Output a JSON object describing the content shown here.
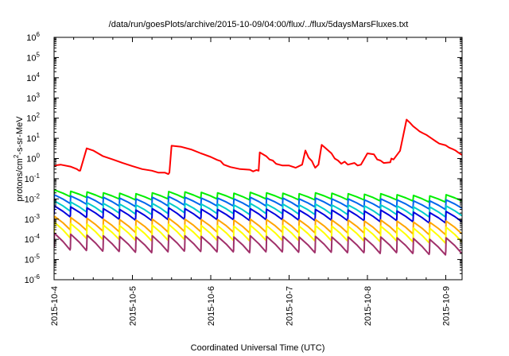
{
  "chart_data": {
    "type": "line",
    "title": "/data/run/goesPlots/archive/2015-10-09/04:00/flux/../flux/5daysMarsFluxes.txt",
    "xlabel": "Coordinated Universal Time (UTC)",
    "ylabel": {
      "pre": "protons/cm",
      "sup": "2",
      "post": "-s-sr-MeV"
    },
    "y_scale": "log",
    "ylim_exponent": [
      -6,
      6
    ],
    "y_ticks": [
      {
        "base": "10",
        "exp": "-6",
        "value": 1e-06
      },
      {
        "base": "10",
        "exp": "-5",
        "value": 1e-05
      },
      {
        "base": "10",
        "exp": "-4",
        "value": 0.0001
      },
      {
        "base": "10",
        "exp": "-3",
        "value": 0.001
      },
      {
        "base": "10",
        "exp": "-2",
        "value": 0.01
      },
      {
        "base": "10",
        "exp": "-1",
        "value": 0.1
      },
      {
        "base": "10",
        "exp": "0",
        "value": 1
      },
      {
        "base": "10",
        "exp": "1",
        "value": 10
      },
      {
        "base": "10",
        "exp": "2",
        "value": 100
      },
      {
        "base": "10",
        "exp": "3",
        "value": 1000
      },
      {
        "base": "10",
        "exp": "4",
        "value": 10000
      },
      {
        "base": "10",
        "exp": "5",
        "value": 100000
      },
      {
        "base": "10",
        "exp": "6",
        "value": 1000000
      }
    ],
    "xlim": [
      "2015-10-04",
      "2015-10-09T05:00"
    ],
    "x_ticks": [
      "2015-10-4",
      "2015-10-5",
      "2015-10-6",
      "2015-10-7",
      "2015-10-8",
      "2015-10-9"
    ],
    "grid": false,
    "series": [
      {
        "color": "#ff0000",
        "x": [
          "2015-10-04T00:00",
          "2015-10-04T02:00",
          "2015-10-04T05:00",
          "2015-10-04T07:00",
          "2015-10-04T07:40",
          "2015-10-04T08:00",
          "2015-10-04T10:00",
          "2015-10-04T12:00",
          "2015-10-04T15:00",
          "2015-10-04T18:00",
          "2015-10-04T21:00",
          "2015-10-05T00:00",
          "2015-10-05T03:00",
          "2015-10-05T06:00",
          "2015-10-05T08:00",
          "2015-10-05T10:00",
          "2015-10-05T11:00",
          "2015-10-05T11:20",
          "2015-10-05T12:00",
          "2015-10-05T15:00",
          "2015-10-05T18:00",
          "2015-10-05T21:00",
          "2015-10-06T00:00",
          "2015-10-06T02:00",
          "2015-10-06T03:00",
          "2015-10-06T04:00",
          "2015-10-06T06:00",
          "2015-10-06T09:00",
          "2015-10-06T12:00",
          "2015-10-06T13:00",
          "2015-10-06T14:00",
          "2015-10-06T14:40",
          "2015-10-06T15:00",
          "2015-10-06T17:00",
          "2015-10-06T18:00",
          "2015-10-06T19:00",
          "2015-10-06T20:00",
          "2015-10-06T22:00",
          "2015-10-07T00:00",
          "2015-10-07T02:00",
          "2015-10-07T04:00",
          "2015-10-07T05:00",
          "2015-10-07T06:00",
          "2015-10-07T07:00",
          "2015-10-07T07:30",
          "2015-10-07T08:00",
          "2015-10-07T09:00",
          "2015-10-07T10:00",
          "2015-10-07T11:00",
          "2015-10-07T13:00",
          "2015-10-07T14:00",
          "2015-10-07T15:00",
          "2015-10-07T16:00",
          "2015-10-07T17:00",
          "2015-10-07T18:00",
          "2015-10-07T20:00",
          "2015-10-07T21:00",
          "2015-10-07T22:00",
          "2015-10-08T00:00",
          "2015-10-08T02:00",
          "2015-10-08T03:00",
          "2015-10-08T04:00",
          "2015-10-08T05:00",
          "2015-10-08T07:00",
          "2015-10-08T07:20",
          "2015-10-08T08:00",
          "2015-10-08T10:00",
          "2015-10-08T12:00",
          "2015-10-08T13:00",
          "2015-10-08T14:00",
          "2015-10-08T15:00",
          "2015-10-08T16:00",
          "2015-10-08T17:00",
          "2015-10-08T18:00",
          "2015-10-08T20:00",
          "2015-10-08T21:00",
          "2015-10-08T22:00",
          "2015-10-09T00:00",
          "2015-10-09T01:00",
          "2015-10-09T02:00",
          "2015-10-09T03:00",
          "2015-10-09T04:00",
          "2015-10-09T05:00"
        ],
        "y": [
          0.45,
          0.5,
          0.4,
          0.3,
          0.25,
          0.25,
          3.2,
          2.5,
          1.3,
          0.9,
          0.6,
          0.42,
          0.3,
          0.25,
          0.2,
          0.2,
          0.17,
          0.2,
          4.3,
          3.8,
          2.8,
          1.8,
          1.2,
          0.85,
          0.75,
          0.5,
          0.38,
          0.3,
          0.28,
          0.23,
          0.27,
          0.25,
          2.0,
          1.3,
          0.9,
          0.8,
          0.55,
          0.45,
          0.45,
          0.35,
          0.5,
          2.5,
          1.1,
          0.75,
          0.5,
          0.35,
          0.5,
          4.8,
          3.5,
          1.8,
          1.0,
          0.8,
          0.55,
          0.7,
          0.5,
          0.6,
          0.45,
          0.5,
          1.8,
          1.6,
          0.9,
          0.8,
          0.6,
          0.65,
          1.0,
          0.9,
          2.4,
          85,
          60,
          40,
          30,
          22,
          18,
          15,
          9,
          7,
          5.5,
          4.5,
          3.5,
          3,
          2.5,
          1.9,
          1.5
        ]
      },
      {
        "color": "#00ee00",
        "spiky": true,
        "peaks": [
          0.028,
          0.024,
          0.022,
          0.02,
          0.019,
          0.018,
          0.02,
          0.023,
          0.022,
          0.021,
          0.02,
          0.019,
          0.021,
          0.02,
          0.019,
          0.018,
          0.02,
          0.019,
          0.018,
          0.017,
          0.018,
          0.016,
          0.015,
          0.014,
          0.016
        ],
        "troughs": [
          0.013,
          0.012,
          0.011,
          0.01,
          0.009,
          0.009,
          0.01,
          0.011,
          0.011,
          0.01,
          0.01,
          0.009,
          0.01,
          0.01,
          0.009,
          0.009,
          0.01,
          0.009,
          0.009,
          0.008,
          0.009,
          0.008,
          0.007,
          0.007,
          0.008
        ]
      },
      {
        "color": "#0066ee",
        "spiky": true,
        "peaks": [
          0.016,
          0.014,
          0.013,
          0.012,
          0.011,
          0.01,
          0.012,
          0.013,
          0.012,
          0.011,
          0.011,
          0.01,
          0.012,
          0.011,
          0.011,
          0.01,
          0.011,
          0.01,
          0.01,
          0.009,
          0.01,
          0.009,
          0.008,
          0.008,
          0.009
        ],
        "troughs": [
          0.006,
          0.0055,
          0.005,
          0.0045,
          0.0042,
          0.004,
          0.0045,
          0.005,
          0.005,
          0.0045,
          0.0045,
          0.004,
          0.0045,
          0.0045,
          0.004,
          0.004,
          0.0045,
          0.004,
          0.004,
          0.0036,
          0.004,
          0.0035,
          0.0032,
          0.003,
          0.0035
        ]
      },
      {
        "color": "#00cccc",
        "spiky": true,
        "peaks": [
          0.008,
          0.007,
          0.0065,
          0.006,
          0.0055,
          0.005,
          0.006,
          0.0065,
          0.006,
          0.0055,
          0.0055,
          0.005,
          0.006,
          0.0055,
          0.0055,
          0.005,
          0.0055,
          0.005,
          0.005,
          0.0045,
          0.005,
          0.0045,
          0.004,
          0.004,
          0.0045
        ],
        "troughs": [
          0.0025,
          0.0023,
          0.0021,
          0.002,
          0.0018,
          0.0017,
          0.0019,
          0.0021,
          0.002,
          0.0019,
          0.0019,
          0.0017,
          0.0019,
          0.0019,
          0.0018,
          0.0017,
          0.0018,
          0.0017,
          0.0017,
          0.0015,
          0.0017,
          0.0015,
          0.0013,
          0.0013,
          0.0015
        ]
      },
      {
        "color": "#0000dd",
        "spiky": true,
        "peaks": [
          0.0045,
          0.004,
          0.0036,
          0.0033,
          0.003,
          0.0028,
          0.0033,
          0.0036,
          0.0033,
          0.0031,
          0.003,
          0.0028,
          0.0033,
          0.0031,
          0.003,
          0.0028,
          0.003,
          0.0028,
          0.0028,
          0.0025,
          0.0028,
          0.0025,
          0.0022,
          0.0021,
          0.0024
        ],
        "troughs": [
          0.0013,
          0.0012,
          0.0011,
          0.001,
          0.0009,
          0.00085,
          0.00095,
          0.001,
          0.001,
          0.00095,
          0.00095,
          0.00085,
          0.00095,
          0.00095,
          0.0009,
          0.00085,
          0.0009,
          0.00085,
          0.00085,
          0.00075,
          0.00085,
          0.00075,
          0.00065,
          0.00065,
          0.00075
        ]
      },
      {
        "color": "#ffa500",
        "spiky": true,
        "peaks": [
          0.0014,
          0.0012,
          0.0011,
          0.001,
          0.00095,
          0.0009,
          0.001,
          0.0011,
          0.001,
          0.00095,
          0.00095,
          0.0009,
          0.001,
          0.00095,
          0.00095,
          0.0009,
          0.00095,
          0.0009,
          0.0009,
          0.0008,
          0.0009,
          0.0008,
          0.00072,
          0.0007,
          0.0008
        ],
        "troughs": [
          0.0003,
          0.00028,
          0.00026,
          0.00024,
          0.00022,
          0.00021,
          0.00023,
          0.00025,
          0.00024,
          0.00023,
          0.00023,
          0.00021,
          0.00023,
          0.00023,
          0.00022,
          0.00021,
          0.00022,
          0.00021,
          0.00021,
          0.00019,
          0.00021,
          0.00019,
          0.00017,
          0.00017,
          0.00019
        ]
      },
      {
        "color": "#ffff00",
        "spiky": true,
        "peaks": [
          0.0007,
          0.0006,
          0.00055,
          0.0005,
          0.00048,
          0.00045,
          0.0005,
          0.00055,
          0.0005,
          0.00048,
          0.00048,
          0.00045,
          0.0005,
          0.00048,
          0.00048,
          0.00045,
          0.00048,
          0.00045,
          0.00045,
          0.0004,
          0.00045,
          0.0004,
          0.00036,
          0.00035,
          0.0004
        ],
        "troughs": [
          0.00012,
          0.00011,
          0.0001,
          0.0001,
          9e-05,
          8.5e-05,
          9e-05,
          0.0001,
          0.0001,
          9e-05,
          9e-05,
          8.5e-05,
          9e-05,
          9e-05,
          8.8e-05,
          8.5e-05,
          8.8e-05,
          8.5e-05,
          8.5e-05,
          7.6e-05,
          8.5e-05,
          7.6e-05,
          6.8e-05,
          6.5e-05,
          7.6e-05
        ]
      },
      {
        "color": "#a0306a",
        "spiky": true,
        "peaks": [
          0.0002,
          0.00018,
          0.00016,
          0.00015,
          0.00014,
          0.00013,
          0.00015,
          0.00016,
          0.00015,
          0.00014,
          0.00014,
          0.00013,
          0.00015,
          0.00014,
          0.00014,
          0.00013,
          0.00014,
          0.00013,
          0.00013,
          0.00012,
          0.00013,
          0.00012,
          0.00011,
          0.0001,
          0.00012
        ],
        "troughs": [
          3e-05,
          2.8e-05,
          2.6e-05,
          2.5e-05,
          2.3e-05,
          2.2e-05,
          2.4e-05,
          2.6e-05,
          2.5e-05,
          2.4e-05,
          2.4e-05,
          2.2e-05,
          2.4e-05,
          2.4e-05,
          2.3e-05,
          2.2e-05,
          2.3e-05,
          2.2e-05,
          2.2e-05,
          2e-05,
          2.2e-05,
          2e-05,
          1.8e-05,
          1.7e-05,
          2e-05
        ]
      }
    ]
  }
}
